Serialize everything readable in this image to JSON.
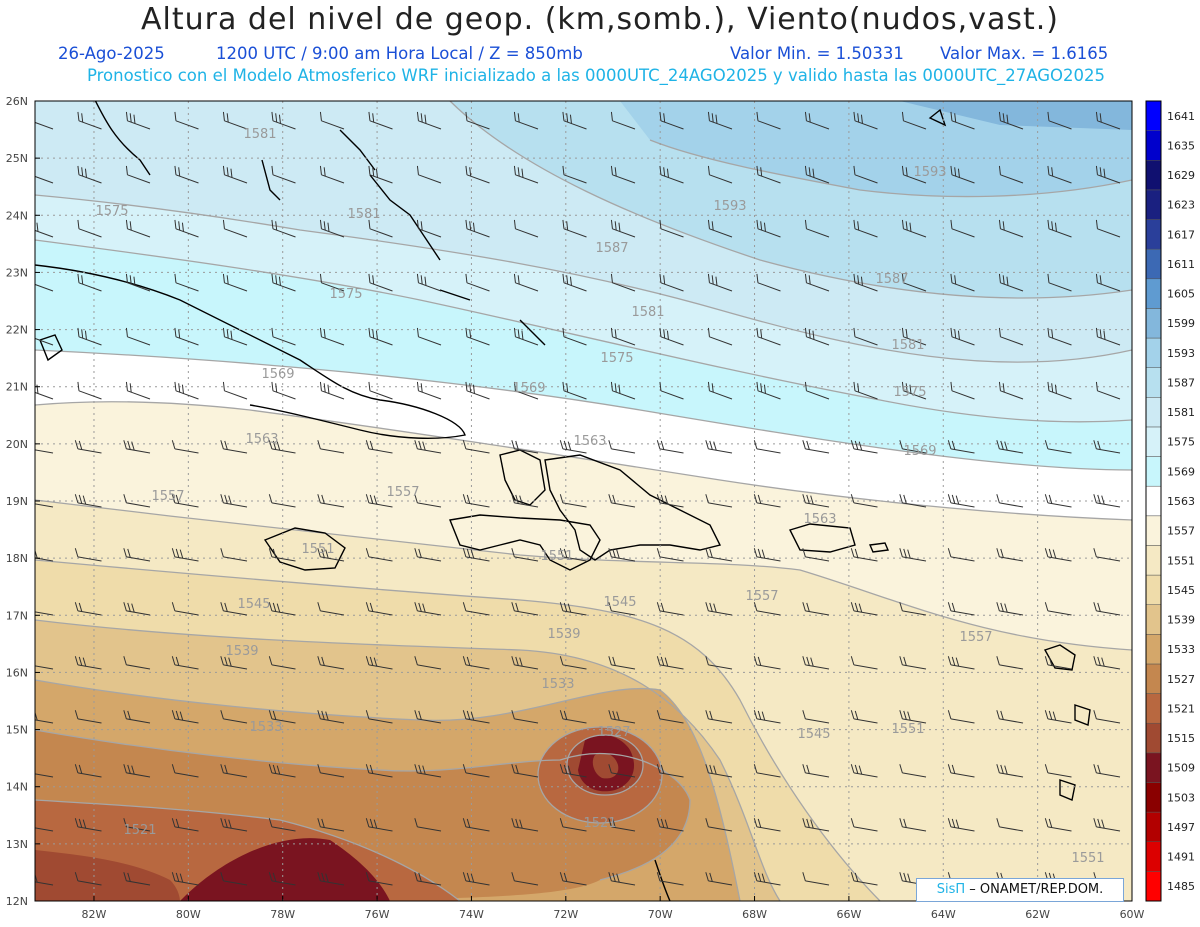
{
  "title": "Altura del nivel de geop. (km,somb.), Viento(nudos,vast.)",
  "subtitle_date": "26-Ago-2025",
  "subtitle_time": "1200 UTC / 9:00 am Hora Local / Z = 850mb",
  "subtitle_min": "Valor Min. = 1.50331",
  "subtitle_max": "Valor Max. = 1.6165",
  "subtitle_model": "Pronostico con el Modelo Atmosferico WRF inicializado a las 0000UTC_24AGO2025 y valido hasta las  0000UTC_27AGO2025",
  "credit_brand": "SisΠ",
  "credit_org": "– ONAMET/REP.DOM.",
  "lat_labels": [
    "26N",
    "25N",
    "24N",
    "23N",
    "22N",
    "21N",
    "20N",
    "19N",
    "18N",
    "17N",
    "16N",
    "15N",
    "14N",
    "13N",
    "12N"
  ],
  "lon_labels": [
    "82W",
    "80W",
    "78W",
    "76W",
    "74W",
    "72W",
    "70W",
    "68W",
    "66W",
    "64W",
    "62W",
    "60W"
  ],
  "colorbar": {
    "levels": [
      "1485",
      "1491",
      "1497",
      "1503",
      "1509",
      "1515",
      "1521",
      "1527",
      "1533",
      "1539",
      "1545",
      "1551",
      "1557",
      "1563",
      "1569",
      "1575",
      "1581",
      "1587",
      "1593",
      "1599",
      "1605",
      "1611",
      "1617",
      "1623",
      "1629",
      "1635",
      "1641"
    ],
    "colors": [
      "#ff0000",
      "#dc0000",
      "#b20000",
      "#8a0000",
      "#7a1420",
      "#a04a32",
      "#b86840",
      "#c4874f",
      "#d4a76a",
      "#e2c48c",
      "#efdcaa",
      "#f5e9c4",
      "#faf3dc",
      "#ffffff",
      "#c8f6fc",
      "#d6f2f9",
      "#cdeaf4",
      "#b7e0ef",
      "#a3d2ea",
      "#83b7dc",
      "#5f9bd1",
      "#3c69b4",
      "#2a3f9a",
      "#1a2080",
      "#101070",
      "#0000cc",
      "#0000ff"
    ]
  },
  "contour_labels": [
    "1581",
    "1575",
    "1581",
    "1593",
    "1593",
    "1587",
    "1587",
    "1575",
    "1581",
    "1581",
    "1575",
    "1569",
    "1569",
    "1575",
    "1563",
    "1563",
    "1569",
    "1557",
    "1557",
    "1551",
    "1551",
    "1563",
    "1545",
    "1545",
    "1557",
    "1539",
    "1539",
    "1557",
    "1533",
    "1533",
    "1527",
    "1545",
    "1551",
    "1521",
    "1521",
    "1551"
  ]
}
